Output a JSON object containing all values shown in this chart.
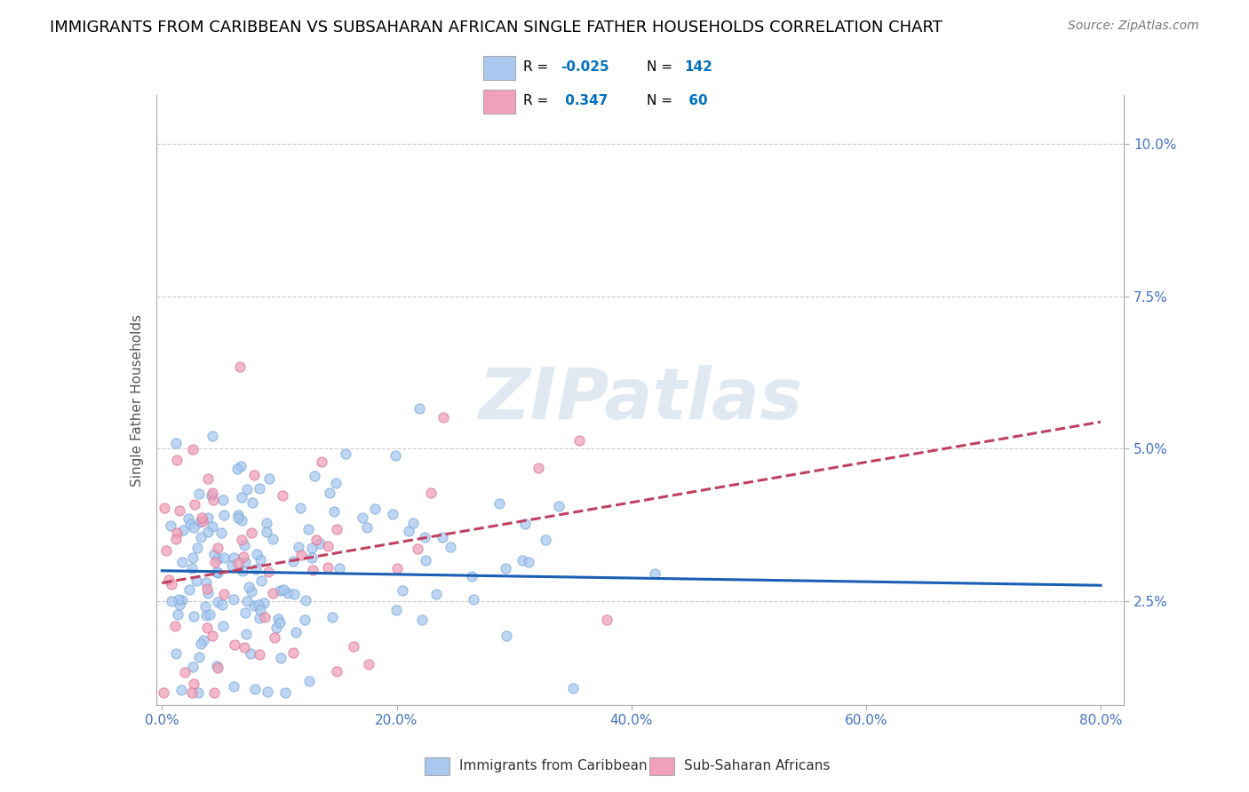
{
  "title": "IMMIGRANTS FROM CARIBBEAN VS SUBSAHARAN AFRICAN SINGLE FATHER HOUSEHOLDS CORRELATION CHART",
  "source": "Source: ZipAtlas.com",
  "ylabel": "Single Father Households",
  "watermark": "ZIPatlas",
  "series": [
    {
      "label": "Immigrants from Caribbean",
      "R": -0.025,
      "N": 142,
      "color": "#A8C8F0",
      "edge_color": "#7BAAD8",
      "trend_color": "#1a5fb4",
      "trend_slope": -0.003,
      "trend_intercept": 0.03
    },
    {
      "label": "Sub-Saharan Africans",
      "R": 0.347,
      "N": 60,
      "color": "#F0A0B8",
      "edge_color": "#D87898",
      "trend_color": "#c04060",
      "trend_slope": 0.033,
      "trend_intercept": 0.028
    }
  ],
  "xlim": [
    -0.005,
    0.82
  ],
  "ylim": [
    0.008,
    0.108
  ],
  "yticks": [
    0.025,
    0.05,
    0.075,
    0.1
  ],
  "ytick_labels": [
    "2.5%",
    "5.0%",
    "7.5%",
    "10.0%"
  ],
  "xticks": [
    0.0,
    0.2,
    0.4,
    0.6,
    0.8
  ],
  "xtick_labels": [
    "0.0%",
    "20.0%",
    "40.0%",
    "60.0%",
    "80.0%"
  ],
  "background_color": "#ffffff",
  "grid_color": "#cccccc",
  "title_color": "#000000",
  "title_fontsize": 13,
  "tick_label_color": "#4472c4",
  "legend_value_color": "#0070c0",
  "seed": 42
}
